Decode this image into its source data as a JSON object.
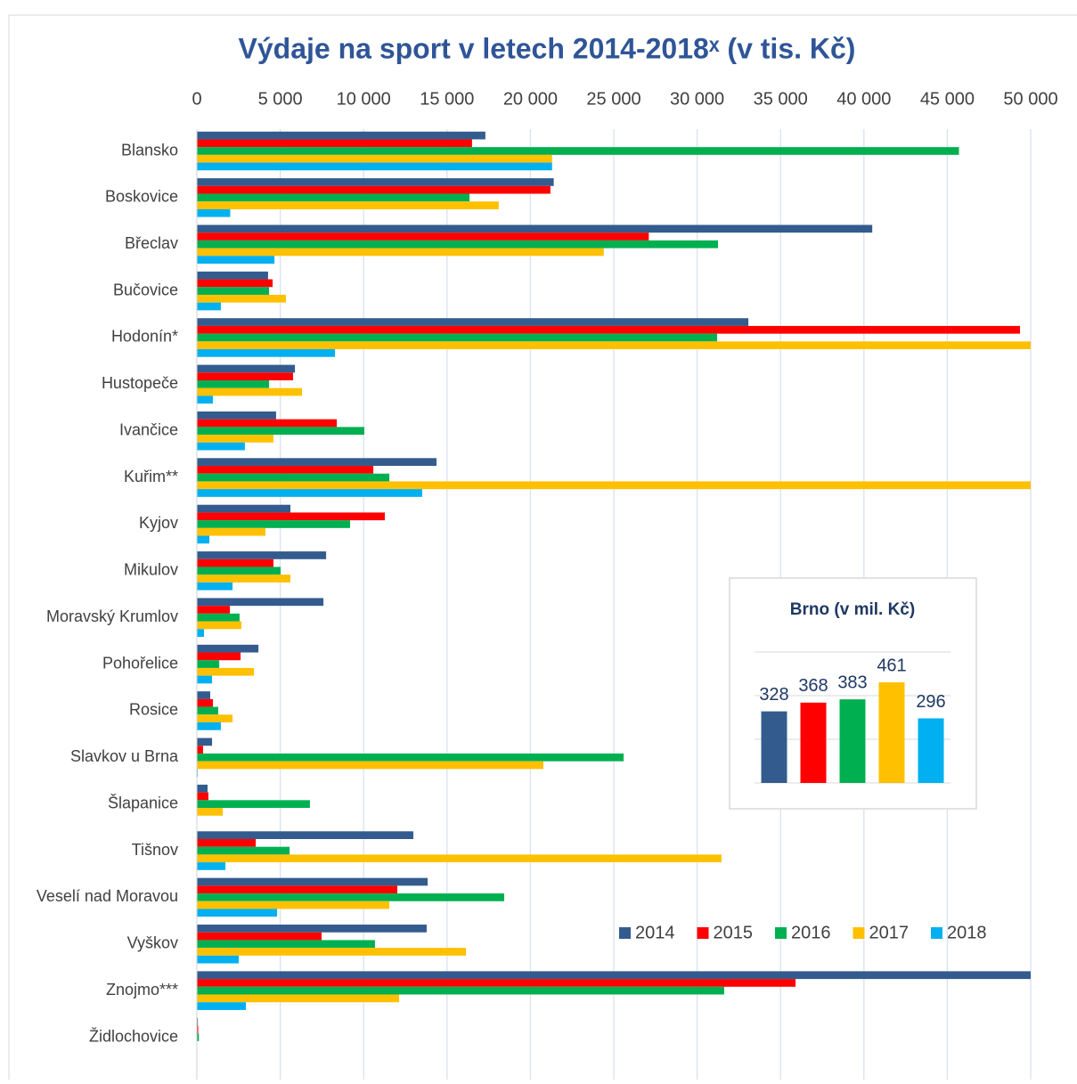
{
  "chart_data": [
    {
      "type": "barh",
      "title": "Výdaje na sport v letech 2014-2018ˣ (v tis. Kč)",
      "categories": [
        "Blansko",
        "Boskovice",
        "Břeclav",
        "Bučovice",
        "Hodonín*",
        "Hustopeče",
        "Ivančice",
        "Kuřim**",
        "Kyjov",
        "Mikulov",
        "Moravský Krumlov",
        "Pohořelice",
        "Rosice",
        "Slavkov u Brna",
        "Šlapanice",
        "Tišnov",
        "Veselí nad Moravou",
        "Vyškov",
        "Znojmo***",
        "Židlochovice"
      ],
      "series": [
        {
          "name": "2014",
          "color": "#335b8e",
          "values": [
            17300,
            21400,
            40500,
            4270,
            33070,
            5880,
            4750,
            14370,
            5610,
            7750,
            7590,
            3690,
            800,
            910,
            640,
            12980,
            13840,
            13780,
            50000,
            60
          ]
        },
        {
          "name": "2015",
          "color": "#ff0000",
          "values": [
            16500,
            21200,
            27100,
            4540,
            49360,
            5770,
            8390,
            10580,
            11270,
            4590,
            1980,
            2620,
            960,
            370,
            690,
            3530,
            12020,
            7480,
            35900,
            80
          ]
        },
        {
          "name": "2016",
          "color": "#00b050",
          "values": [
            45700,
            16350,
            31250,
            4330,
            31200,
            4330,
            10040,
            11540,
            9190,
            5020,
            2560,
            1340,
            1280,
            25590,
            6780,
            5560,
            18430,
            10680,
            31620,
            120
          ]
        },
        {
          "name": "2017",
          "color": "#ffc000",
          "values": [
            21300,
            18100,
            24400,
            5340,
            50000,
            6300,
            4590,
            50000,
            4110,
            5610,
            2670,
            3420,
            2140,
            20780,
            1550,
            31460,
            11540,
            16130,
            12130,
            0
          ]
        },
        {
          "name": "2018",
          "color": "#00b0f0",
          "values": [
            21300,
            2000,
            4650,
            1440,
            8280,
            960,
            2880,
            13510,
            750,
            2140,
            430,
            910,
            1440,
            50,
            0,
            1710,
            4810,
            2510,
            2940,
            0
          ]
        }
      ],
      "xlim": [
        0,
        50000
      ],
      "xticks": [
        0,
        {
          "value": 5000,
          "label": "5 000"
        },
        {
          "value": 10000,
          "label": "10 000"
        },
        {
          "value": 15000,
          "label": "15 000"
        },
        {
          "value": 20000,
          "label": "20 000"
        },
        {
          "value": 25000,
          "label": "25 000"
        },
        {
          "value": 30000,
          "label": "30 000"
        },
        {
          "value": 35000,
          "label": "35 000"
        },
        {
          "value": 40000,
          "label": "40 000"
        },
        {
          "value": 45000,
          "label": "45 000"
        },
        {
          "value": 50000,
          "label": "50 000"
        }
      ],
      "grid": true
    },
    {
      "type": "bar",
      "title": "Brno (v mil. Kč)",
      "values": [
        328,
        368,
        383,
        461,
        296
      ],
      "colors": [
        "#335b8e",
        "#ff0000",
        "#00b050",
        "#ffc000",
        "#00b0f0"
      ],
      "ylim": [
        0,
        600
      ],
      "yticks": [
        0,
        200,
        400,
        600
      ],
      "grid": true
    }
  ]
}
